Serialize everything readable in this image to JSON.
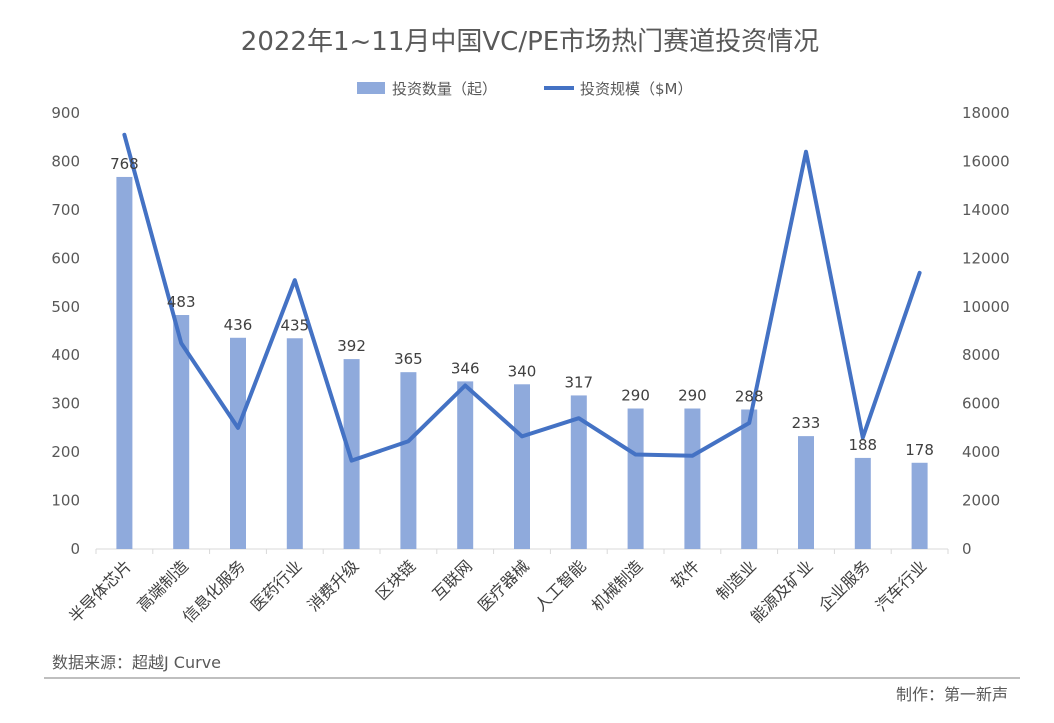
{
  "chart_data": {
    "type": "bar",
    "title": "2022年1~11月中国VC/PE市场热门赛道投资情况",
    "categories": [
      "半导体芯片",
      "高端制造",
      "信息化服务",
      "医药行业",
      "消费升级",
      "区块链",
      "互联网",
      "医疗器械",
      "人工智能",
      "机械制造",
      "软件",
      "制造业",
      "能源及矿业",
      "企业服务",
      "汽车行业"
    ],
    "series": [
      {
        "name": "投资数量（起）",
        "type": "bar",
        "axis": "left",
        "color": "#8faadc",
        "values": [
          768,
          483,
          436,
          435,
          392,
          365,
          346,
          340,
          317,
          290,
          290,
          288,
          233,
          188,
          178
        ]
      },
      {
        "name": "投资规模（$M）",
        "type": "line",
        "axis": "right",
        "color": "#4472c4",
        "values": [
          17100,
          8500,
          5000,
          11100,
          3650,
          4450,
          6750,
          4650,
          5400,
          3900,
          3850,
          5200,
          16400,
          4600,
          11400
        ]
      }
    ],
    "ylim_left": [
      0,
      900
    ],
    "yticks_left": [
      0,
      100,
      200,
      300,
      400,
      500,
      600,
      700,
      800,
      900
    ],
    "ylim_right": [
      0,
      18000
    ],
    "yticks_right": [
      0,
      2000,
      4000,
      6000,
      8000,
      10000,
      12000,
      14000,
      16000,
      18000
    ],
    "legend_position": "top-center",
    "grid": false
  },
  "footer": {
    "source": "数据来源：超越J Curve",
    "credit": "制作：第一新声"
  }
}
